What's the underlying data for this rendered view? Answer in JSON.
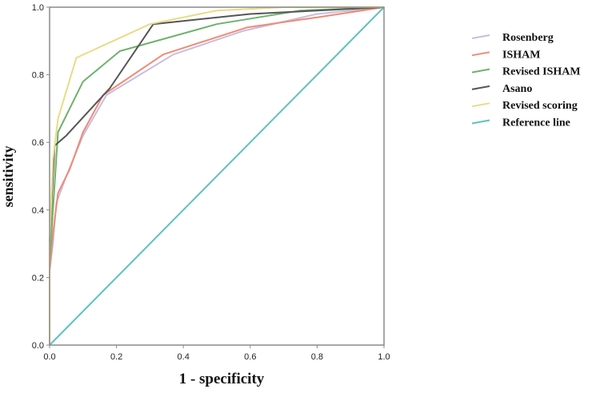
{
  "chart_data": {
    "type": "line",
    "title": "",
    "xlabel": "1 - specificity",
    "ylabel": "sensitivity",
    "xlim": [
      0,
      1
    ],
    "ylim": [
      0,
      1
    ],
    "x_ticks": [
      "0.0",
      "0.2",
      "0.4",
      "0.6",
      "0.8",
      "1.0"
    ],
    "y_ticks": [
      "0.0",
      "0.2",
      "0.4",
      "0.6",
      "0.8",
      "1.0"
    ],
    "grid": false,
    "legend_position": "right",
    "series": [
      {
        "name": "Rosenberg",
        "color": "#c8bde0",
        "points": [
          [
            0,
            0
          ],
          [
            0,
            0.22
          ],
          [
            0.01,
            0.3
          ],
          [
            0.02,
            0.42
          ],
          [
            0.05,
            0.5
          ],
          [
            0.1,
            0.62
          ],
          [
            0.17,
            0.74
          ],
          [
            0.37,
            0.86
          ],
          [
            0.58,
            0.93
          ],
          [
            0.8,
            0.98
          ],
          [
            1,
            1
          ]
        ]
      },
      {
        "name": "ISHAM",
        "color": "#ef8b74",
        "points": [
          [
            0,
            0
          ],
          [
            0,
            0.22
          ],
          [
            0.01,
            0.33
          ],
          [
            0.025,
            0.45
          ],
          [
            0.06,
            0.52
          ],
          [
            0.1,
            0.63
          ],
          [
            0.16,
            0.74
          ],
          [
            0.34,
            0.86
          ],
          [
            0.59,
            0.94
          ],
          [
            0.8,
            0.97
          ],
          [
            1,
            1
          ]
        ]
      },
      {
        "name": "Revised ISHAM",
        "color": "#6db26d",
        "points": [
          [
            0,
            0
          ],
          [
            0,
            0.25
          ],
          [
            0.01,
            0.4
          ],
          [
            0.025,
            0.63
          ],
          [
            0.1,
            0.78
          ],
          [
            0.21,
            0.87
          ],
          [
            0.5,
            0.95
          ],
          [
            0.75,
            0.99
          ],
          [
            1,
            1
          ]
        ]
      },
      {
        "name": "Asano",
        "color": "#555555",
        "points": [
          [
            0,
            0
          ],
          [
            0,
            0.3
          ],
          [
            0.01,
            0.5
          ],
          [
            0.015,
            0.59
          ],
          [
            0.05,
            0.62
          ],
          [
            0.18,
            0.76
          ],
          [
            0.31,
            0.95
          ],
          [
            0.6,
            0.98
          ],
          [
            0.8,
            0.99
          ],
          [
            1,
            1
          ]
        ]
      },
      {
        "name": "Revised scoring",
        "color": "#e8dc86",
        "points": [
          [
            0,
            0
          ],
          [
            0,
            0.3
          ],
          [
            0.01,
            0.55
          ],
          [
            0.025,
            0.67
          ],
          [
            0.08,
            0.85
          ],
          [
            0.3,
            0.95
          ],
          [
            0.5,
            0.99
          ],
          [
            0.7,
            1.0
          ],
          [
            1,
            1
          ]
        ]
      },
      {
        "name": "Reference line",
        "color": "#5ec2bf",
        "points": [
          [
            0,
            0
          ],
          [
            1,
            1
          ]
        ]
      }
    ]
  }
}
